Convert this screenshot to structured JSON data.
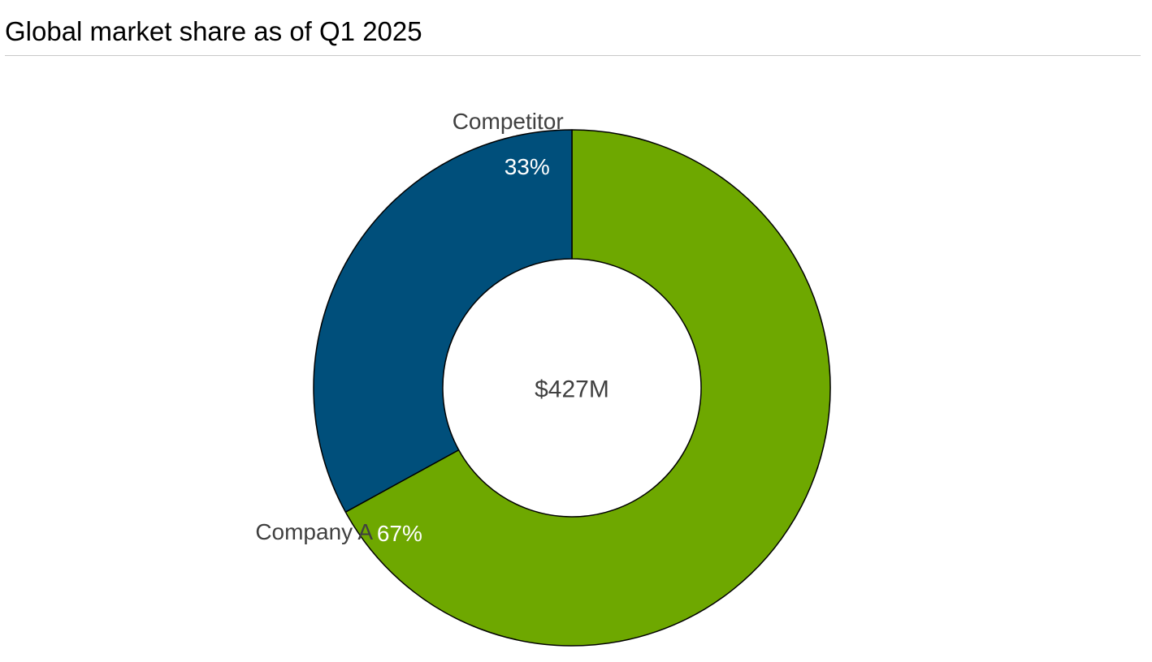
{
  "chart_data": {
    "type": "pie",
    "title": "Global market share as of Q1 2025",
    "center_label": "$427M",
    "slices": [
      {
        "name": "Company A",
        "value": 67,
        "value_label": "67%",
        "color": "#6ea800"
      },
      {
        "name": "Competitor",
        "value": 33,
        "value_label": "33%",
        "color": "#004f7b"
      }
    ]
  }
}
